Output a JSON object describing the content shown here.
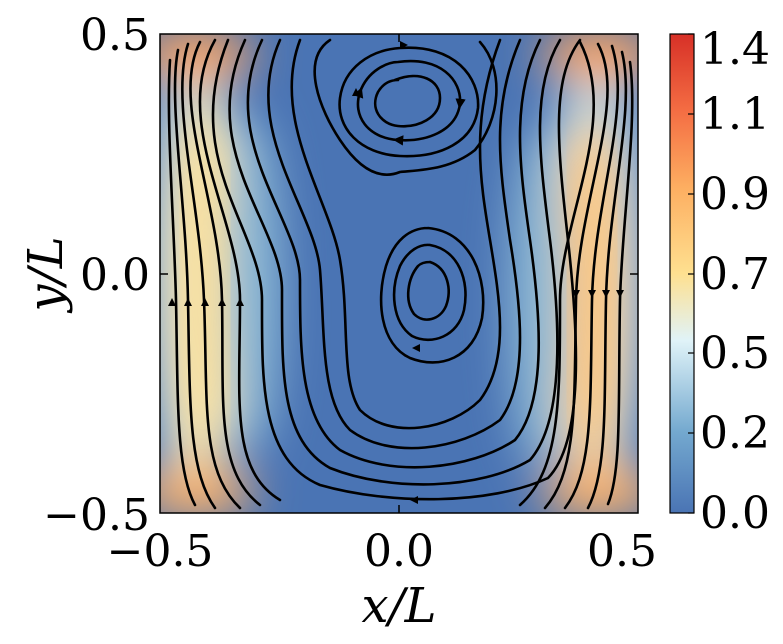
{
  "chart_data": {
    "type": "heatmap",
    "title": "",
    "xlabel": "x/L",
    "ylabel": "y/L",
    "xlim": [
      -0.5,
      0.5
    ],
    "ylim": [
      -0.5,
      0.5
    ],
    "x_ticks": [
      -0.5,
      0.0,
      0.5
    ],
    "x_tick_labels": [
      "−0.5",
      "0.0",
      "0.5"
    ],
    "y_ticks": [
      -0.5,
      0.0,
      0.5
    ],
    "y_tick_labels": [
      "−0.5",
      "0.0",
      "0.5"
    ],
    "colorbar": {
      "colormap": "RdYlBu_r",
      "range": [
        0.0,
        1.4
      ],
      "tick_labels": [
        "0.0",
        "0.2",
        "0.5",
        "0.7",
        "0.9",
        "1.1",
        "1.4"
      ],
      "colors": [
        "#4a74b4",
        "#74a9cf",
        "#e0f3f8",
        "#fee090",
        "#fdae61",
        "#f46d43",
        "#d73027"
      ]
    },
    "overlay": "streamlines",
    "vortex_centers": [
      {
        "x": 0.0,
        "y": 0.37
      },
      {
        "x": 0.07,
        "y": -0.05
      }
    ],
    "field_features": [
      {
        "x": -0.47,
        "y": 0.0,
        "value": 0.9
      },
      {
        "x": 0.42,
        "y": -0.05,
        "value": 0.95
      },
      {
        "x": -0.45,
        "y": 0.48,
        "value": 1.2
      },
      {
        "x": 0.45,
        "y": 0.48,
        "value": 1.2
      },
      {
        "x": -0.45,
        "y": -0.48,
        "value": 1.1
      },
      {
        "x": 0.45,
        "y": -0.48,
        "value": 1.1
      },
      {
        "x": 0.0,
        "y": 0.1,
        "value": 0.0
      }
    ]
  }
}
